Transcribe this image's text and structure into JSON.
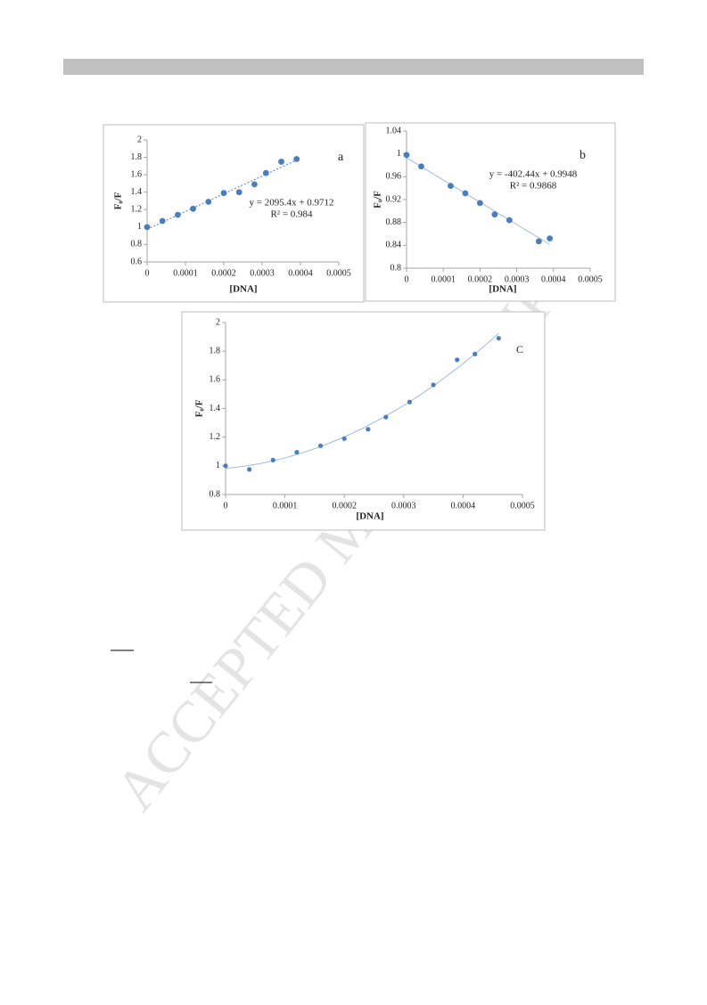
{
  "watermark": "ACCEPTED MANUSCRIPT",
  "chart_data": [
    {
      "type": "scatter",
      "x_label": "[DNA]",
      "y_label": "F₀/F",
      "color": "#4a7ebb",
      "x": [
        0,
        4e-05,
        8e-05,
        0.00012,
        0.00016,
        0.0002,
        0.00024,
        0.00028,
        0.00031,
        0.00035,
        0.00039
      ],
      "values": [
        1.0,
        1.07,
        1.14,
        1.21,
        1.29,
        1.39,
        1.4,
        1.49,
        1.62,
        1.75,
        1.78
      ],
      "xlim": [
        0,
        0.0005
      ],
      "xticks": [
        0,
        0.0001,
        0.0002,
        0.0003,
        0.0004,
        0.0005
      ],
      "ylim": [
        0.6,
        2
      ],
      "yticks": [
        0.6,
        0.8,
        1,
        1.2,
        1.4,
        1.6,
        1.8,
        2
      ],
      "trendline": "linear",
      "trendline_dashed": true,
      "annotations": [
        "a",
        "y = 2095.4x + 0.9712",
        "R² = 0.984"
      ]
    },
    {
      "type": "scatter",
      "x_label": "[DNA]",
      "y_label": "F₀/F",
      "color": "#4a7ebb",
      "x": [
        0,
        4e-05,
        0.00012,
        0.00016,
        0.0002,
        0.00024,
        0.00028,
        0.00036,
        0.00039
      ],
      "values": [
        0.998,
        0.978,
        0.944,
        0.931,
        0.914,
        0.894,
        0.884,
        0.847,
        0.852
      ],
      "xlim": [
        0,
        0.0005
      ],
      "xticks": [
        0,
        0.0001,
        0.0002,
        0.0003,
        0.0004,
        0.0005
      ],
      "ylim": [
        0.8,
        1.04
      ],
      "yticks": [
        0.8,
        0.84,
        0.88,
        0.92,
        0.96,
        1,
        1.04
      ],
      "trendline": "linear",
      "trendline_dashed": false,
      "annotations": [
        "b",
        "y = -402.44x + 0.9948",
        "R² = 0.9868"
      ]
    },
    {
      "type": "scatter",
      "x_label": "[DNA]",
      "y_label": "F₀/F",
      "color": "#4a7ebb",
      "x": [
        0,
        4e-05,
        8e-05,
        0.00012,
        0.00016,
        0.0002,
        0.00024,
        0.00027,
        0.00031,
        0.00035,
        0.00039,
        0.00042,
        0.00046
      ],
      "values": [
        1.0,
        0.975,
        1.04,
        1.095,
        1.14,
        1.19,
        1.255,
        1.34,
        1.445,
        1.565,
        1.74,
        1.78,
        1.89
      ],
      "xlim": [
        0,
        0.0005
      ],
      "xticks": [
        0,
        0.0001,
        0.0002,
        0.0003,
        0.0004,
        0.0005
      ],
      "ylim": [
        0.8,
        2
      ],
      "yticks": [
        0.8,
        1,
        1.2,
        1.4,
        1.6,
        1.8,
        2
      ],
      "trendline": "polynomial",
      "trendline_dashed": false,
      "annotations": [
        "C"
      ]
    }
  ]
}
